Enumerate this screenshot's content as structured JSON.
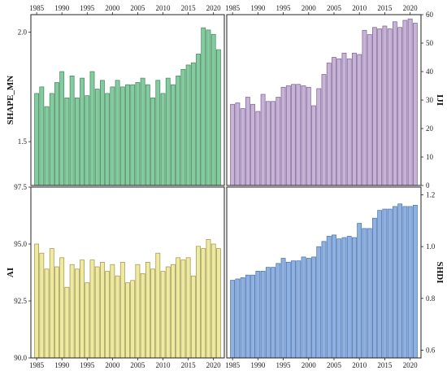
{
  "chart_data": [
    {
      "id": "shape_mn",
      "type": "bar",
      "ylabel": "SHAPE_MN",
      "y_side": "left",
      "ylim": [
        1.3,
        2.08
      ],
      "yticks": [
        1.5,
        2.0
      ],
      "ytick_labels": [
        "1.5",
        "2.0"
      ],
      "color": "#84cba0",
      "edge": "#3e8458",
      "x_tick_side": "top",
      "x": [
        1985,
        1986,
        1987,
        1988,
        1989,
        1990,
        1991,
        1992,
        1993,
        1994,
        1995,
        1996,
        1997,
        1998,
        1999,
        2000,
        2001,
        2002,
        2003,
        2004,
        2005,
        2006,
        2007,
        2008,
        2009,
        2010,
        2011,
        2012,
        2013,
        2014,
        2015,
        2016,
        2017,
        2018,
        2019,
        2020,
        2021
      ],
      "values": [
        1.72,
        1.75,
        1.66,
        1.72,
        1.77,
        1.82,
        1.7,
        1.8,
        1.7,
        1.79,
        1.71,
        1.82,
        1.74,
        1.78,
        1.72,
        1.75,
        1.78,
        1.75,
        1.76,
        1.76,
        1.77,
        1.79,
        1.76,
        1.7,
        1.78,
        1.72,
        1.79,
        1.76,
        1.8,
        1.83,
        1.85,
        1.86,
        1.9,
        2.02,
        2.01,
        1.99,
        1.92
      ]
    },
    {
      "id": "iji",
      "type": "bar",
      "ylabel": "IJI",
      "y_side": "right",
      "ylim": [
        0,
        60
      ],
      "yticks": [
        0,
        10,
        20,
        30,
        40,
        50,
        60
      ],
      "ytick_labels": [
        "0",
        "10",
        "20",
        "30",
        "40",
        "50",
        "60"
      ],
      "color": "#c6b3d6",
      "edge": "#7b5f93",
      "x_tick_side": "top",
      "x": [
        1985,
        1986,
        1987,
        1988,
        1989,
        1990,
        1991,
        1992,
        1993,
        1994,
        1995,
        1996,
        1997,
        1998,
        1999,
        2000,
        2001,
        2002,
        2003,
        2004,
        2005,
        2006,
        2007,
        2008,
        2009,
        2010,
        2011,
        2012,
        2013,
        2014,
        2015,
        2016,
        2017,
        2018,
        2019,
        2020,
        2021
      ],
      "values": [
        28.5,
        29,
        27,
        31,
        28.5,
        26,
        32,
        29.5,
        29.5,
        31,
        34.5,
        35,
        35.5,
        35.5,
        35,
        34.5,
        28,
        34,
        39,
        43,
        45,
        44.5,
        46.5,
        44.5,
        46.5,
        46,
        54.5,
        53,
        55.5,
        55,
        56,
        55,
        57.5,
        55.5,
        58,
        58.5,
        57
      ]
    },
    {
      "id": "ai",
      "type": "bar",
      "ylabel": "AI",
      "y_side": "left",
      "ylim": [
        90.0,
        97.5
      ],
      "yticks": [
        90.0,
        92.5,
        95.0,
        97.5
      ],
      "ytick_labels": [
        "90.0",
        "92.5",
        "95.0",
        "97.5"
      ],
      "color": "#efeaa2",
      "edge": "#9b9240",
      "x_tick_side": "bottom",
      "x_tick_labels_override": [
        "1985",
        "1990",
        "1995",
        "2000",
        "2005",
        "2010",
        "2015",
        "2020"
      ],
      "x": [
        1985,
        1986,
        1987,
        1988,
        1989,
        1990,
        1991,
        1992,
        1993,
        1994,
        1995,
        1996,
        1997,
        1998,
        1999,
        2000,
        2001,
        2002,
        2003,
        2004,
        2005,
        2006,
        2007,
        2008,
        2009,
        2010,
        2011,
        2012,
        2013,
        2014,
        2015,
        2016,
        2017,
        2018,
        2019,
        2020,
        2021
      ],
      "values": [
        95.0,
        94.6,
        93.9,
        94.8,
        94.0,
        94.4,
        93.1,
        94.1,
        93.9,
        94.3,
        93.3,
        94.3,
        94.0,
        94.2,
        93.8,
        94.1,
        93.6,
        94.2,
        93.3,
        93.4,
        94.1,
        93.7,
        94.2,
        93.9,
        94.6,
        93.8,
        94.0,
        94.1,
        94.4,
        94.3,
        94.4,
        93.6,
        94.9,
        94.8,
        95.2,
        95.0,
        94.8
      ]
    },
    {
      "id": "shdi",
      "type": "bar",
      "ylabel": "SHDI",
      "y_side": "right",
      "ylim": [
        0.57,
        1.23
      ],
      "yticks": [
        0.6,
        0.8,
        1.0,
        1.2
      ],
      "ytick_labels": [
        "0.6",
        "0.8",
        "1.0",
        "1.2"
      ],
      "color": "#8fb1e2",
      "edge": "#456fa9",
      "x_tick_side": "bottom",
      "x": [
        1985,
        1986,
        1987,
        1988,
        1989,
        1990,
        1991,
        1992,
        1993,
        1994,
        1995,
        1996,
        1997,
        1998,
        1999,
        2000,
        2001,
        2002,
        2003,
        2004,
        2005,
        2006,
        2007,
        2008,
        2009,
        2010,
        2011,
        2012,
        2013,
        2014,
        2015,
        2016,
        2017,
        2018,
        2019,
        2020,
        2021
      ],
      "values": [
        0.87,
        0.875,
        0.88,
        0.89,
        0.89,
        0.905,
        0.905,
        0.92,
        0.92,
        0.935,
        0.955,
        0.94,
        0.945,
        0.945,
        0.96,
        0.955,
        0.96,
        1.0,
        1.02,
        1.04,
        1.045,
        1.03,
        1.035,
        1.04,
        1.035,
        1.09,
        1.07,
        1.07,
        1.11,
        1.14,
        1.145,
        1.145,
        1.155,
        1.165,
        1.155,
        1.155,
        1.16
      ]
    }
  ],
  "x_tick_labels": [
    "1985",
    "1990",
    "1995",
    "2000",
    "2005",
    "2010",
    "2015",
    "2020"
  ],
  "x_tick_years": [
    1985,
    1990,
    1995,
    2000,
    2005,
    2010,
    2015,
    2020
  ]
}
